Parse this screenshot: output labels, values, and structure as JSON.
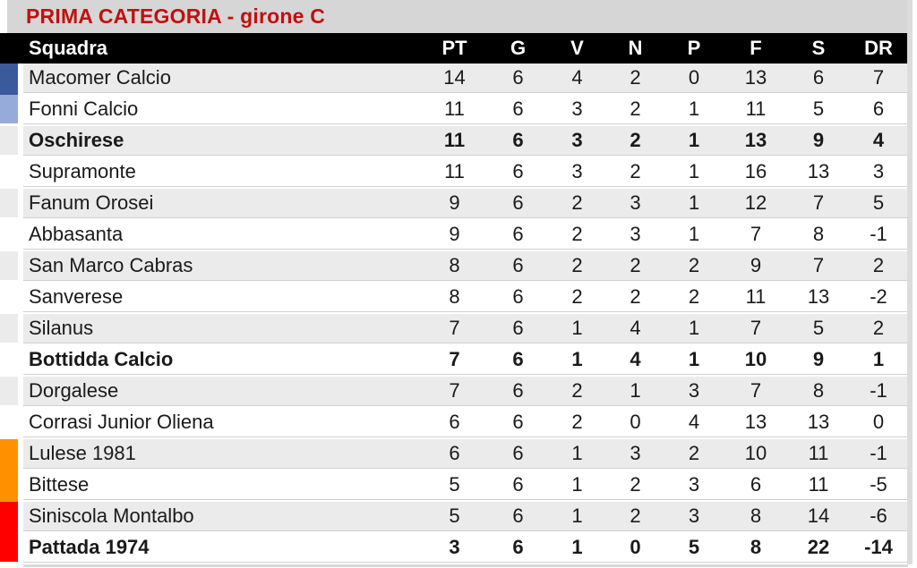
{
  "title": "PRIMA CATEGORIA - girone C",
  "colors": {
    "title_text": "#c11010",
    "title_band_bg": "#d6d6d6",
    "header_bg": "#000000",
    "header_text": "#ffffff",
    "row_shade_bg": "#ebebeb",
    "markers": {
      "dark-blue": "#3b5a9c",
      "light-blue": "#96abd9",
      "orange": "#ff9000",
      "red": "#fe0000"
    }
  },
  "table": {
    "columns": [
      "Squadra",
      "PT",
      "G",
      "V",
      "N",
      "P",
      "F",
      "S",
      "DR"
    ],
    "rows": [
      {
        "team": "Macomer Calcio",
        "pt": "14",
        "g": "6",
        "v": "4",
        "n": "2",
        "p": "0",
        "f": "13",
        "s": "6",
        "dr": "7",
        "bold": false,
        "marker": "dark-blue"
      },
      {
        "team": "Fonni Calcio",
        "pt": "11",
        "g": "6",
        "v": "3",
        "n": "2",
        "p": "1",
        "f": "11",
        "s": "5",
        "dr": "6",
        "bold": false,
        "marker": "light-blue"
      },
      {
        "team": "Oschirese",
        "pt": "11",
        "g": "6",
        "v": "3",
        "n": "2",
        "p": "1",
        "f": "13",
        "s": "9",
        "dr": "4",
        "bold": true,
        "marker": null
      },
      {
        "team": "Supramonte",
        "pt": "11",
        "g": "6",
        "v": "3",
        "n": "2",
        "p": "1",
        "f": "16",
        "s": "13",
        "dr": "3",
        "bold": false,
        "marker": null
      },
      {
        "team": "Fanum Orosei",
        "pt": "9",
        "g": "6",
        "v": "2",
        "n": "3",
        "p": "1",
        "f": "12",
        "s": "7",
        "dr": "5",
        "bold": false,
        "marker": null
      },
      {
        "team": "Abbasanta",
        "pt": "9",
        "g": "6",
        "v": "2",
        "n": "3",
        "p": "1",
        "f": "7",
        "s": "8",
        "dr": "-1",
        "bold": false,
        "marker": null
      },
      {
        "team": "San Marco Cabras",
        "pt": "8",
        "g": "6",
        "v": "2",
        "n": "2",
        "p": "2",
        "f": "9",
        "s": "7",
        "dr": "2",
        "bold": false,
        "marker": null
      },
      {
        "team": "Sanverese",
        "pt": "8",
        "g": "6",
        "v": "2",
        "n": "2",
        "p": "2",
        "f": "11",
        "s": "13",
        "dr": "-2",
        "bold": false,
        "marker": null
      },
      {
        "team": "Silanus",
        "pt": "7",
        "g": "6",
        "v": "1",
        "n": "4",
        "p": "1",
        "f": "7",
        "s": "5",
        "dr": "2",
        "bold": false,
        "marker": null
      },
      {
        "team": "Bottidda Calcio",
        "pt": "7",
        "g": "6",
        "v": "1",
        "n": "4",
        "p": "1",
        "f": "10",
        "s": "9",
        "dr": "1",
        "bold": true,
        "marker": null
      },
      {
        "team": "Dorgalese",
        "pt": "7",
        "g": "6",
        "v": "2",
        "n": "1",
        "p": "3",
        "f": "7",
        "s": "8",
        "dr": "-1",
        "bold": false,
        "marker": null
      },
      {
        "team": "Corrasi Junior Oliena",
        "pt": "6",
        "g": "6",
        "v": "2",
        "n": "0",
        "p": "4",
        "f": "13",
        "s": "13",
        "dr": "0",
        "bold": false,
        "marker": null
      },
      {
        "team": "Lulese 1981",
        "pt": "6",
        "g": "6",
        "v": "1",
        "n": "3",
        "p": "2",
        "f": "10",
        "s": "11",
        "dr": "-1",
        "bold": false,
        "marker": "orange"
      },
      {
        "team": "Bittese",
        "pt": "5",
        "g": "6",
        "v": "1",
        "n": "2",
        "p": "3",
        "f": "6",
        "s": "11",
        "dr": "-5",
        "bold": false,
        "marker": "orange"
      },
      {
        "team": "Siniscola Montalbo",
        "pt": "5",
        "g": "6",
        "v": "1",
        "n": "2",
        "p": "3",
        "f": "8",
        "s": "14",
        "dr": "-6",
        "bold": false,
        "marker": "red"
      },
      {
        "team": "Pattada 1974",
        "pt": "3",
        "g": "6",
        "v": "1",
        "n": "0",
        "p": "5",
        "f": "8",
        "s": "22",
        "dr": "-14",
        "bold": true,
        "marker": "red"
      }
    ]
  },
  "chart_data": {
    "type": "table",
    "title": "PRIMA CATEGORIA - girone C",
    "columns": [
      "Squadra",
      "PT",
      "G",
      "V",
      "N",
      "P",
      "F",
      "S",
      "DR"
    ],
    "rows": [
      [
        "Macomer Calcio",
        14,
        6,
        4,
        2,
        0,
        13,
        6,
        7
      ],
      [
        "Fonni Calcio",
        11,
        6,
        3,
        2,
        1,
        11,
        5,
        6
      ],
      [
        "Oschirese",
        11,
        6,
        3,
        2,
        1,
        13,
        9,
        4
      ],
      [
        "Supramonte",
        11,
        6,
        3,
        2,
        1,
        16,
        13,
        3
      ],
      [
        "Fanum Orosei",
        9,
        6,
        2,
        3,
        1,
        12,
        7,
        5
      ],
      [
        "Abbasanta",
        9,
        6,
        2,
        3,
        1,
        7,
        8,
        -1
      ],
      [
        "San Marco Cabras",
        8,
        6,
        2,
        2,
        2,
        9,
        7,
        2
      ],
      [
        "Sanverese",
        8,
        6,
        2,
        2,
        2,
        11,
        13,
        -2
      ],
      [
        "Silanus",
        7,
        6,
        1,
        4,
        1,
        7,
        5,
        2
      ],
      [
        "Bottidda Calcio",
        7,
        6,
        1,
        4,
        1,
        10,
        9,
        1
      ],
      [
        "Dorgalese",
        7,
        6,
        2,
        1,
        3,
        7,
        8,
        -1
      ],
      [
        "Corrasi Junior Oliena",
        6,
        6,
        2,
        0,
        4,
        13,
        13,
        0
      ],
      [
        "Lulese 1981",
        6,
        6,
        1,
        3,
        2,
        10,
        11,
        -1
      ],
      [
        "Bittese",
        5,
        6,
        1,
        2,
        3,
        6,
        11,
        -5
      ],
      [
        "Siniscola Montalbo",
        5,
        6,
        1,
        2,
        3,
        8,
        14,
        -6
      ],
      [
        "Pattada 1974",
        3,
        6,
        1,
        0,
        5,
        8,
        22,
        -14
      ]
    ]
  }
}
